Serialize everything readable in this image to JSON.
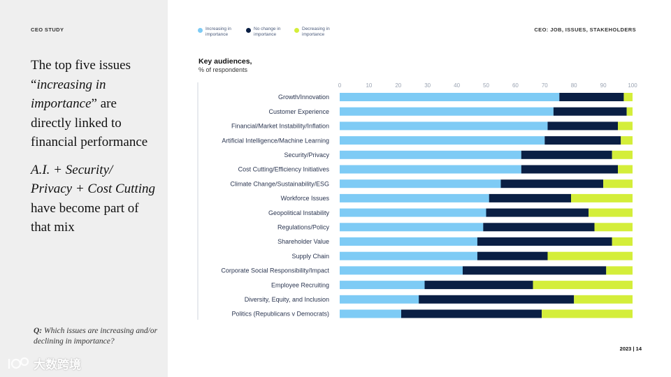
{
  "left_panel": {
    "section_label": "CEO STUDY",
    "headline_p1_a": "The top five  issues “",
    "headline_p1_b": "increasing in importance",
    "headline_p1_c": "” are directly linked to financial performance",
    "headline_p2_a": "A.I. + Security/ Privacy + Cost Cutting",
    "headline_p2_b": " have become part of that mix",
    "question_prefix": "Q:",
    "question_text": " Which issues are increasing and/or declining in importance?",
    "watermark_text": "大数跨境"
  },
  "header": {
    "right_label": "CEO: JOB, ISSUES, STAKEHOLDERS"
  },
  "legend": [
    {
      "label": "Increasing in importance",
      "color": "#7ecbf5"
    },
    {
      "label": "No change in importance",
      "color": "#0a1f44"
    },
    {
      "label": "Decreasing in importance",
      "color": "#d4ee3a"
    }
  ],
  "footer": {
    "year": "2023",
    "separator": "|",
    "page": "14"
  },
  "chart_data": {
    "type": "bar",
    "orientation": "horizontal",
    "stacked": true,
    "title": "Key audiences,",
    "subtitle": "% of respondents",
    "xlim": [
      0,
      100
    ],
    "xticks": [
      0,
      10,
      20,
      30,
      40,
      50,
      60,
      70,
      80,
      90,
      100
    ],
    "categories": [
      "Growth/Innovation",
      "Customer Experience",
      "Financial/Market Instability/Inflation",
      "Artificial Intelligence/Machine Learning",
      "Security/Privacy",
      "Cost Cutting/Efficiency Initiatives",
      "Climate Change/Sustainability/ESG",
      "Workforce Issues",
      "Geopolitical Instability",
      "Regulations/Policy",
      "Shareholder Value",
      "Supply Chain",
      "Corporate Social Responsibility/Impact",
      "Employee Recruiting",
      "Diversity, Equity, and Inclusion",
      "Politics (Republicans v Democrats)"
    ],
    "series": [
      {
        "name": "Increasing in importance",
        "color": "#7ecbf5",
        "values": [
          75,
          73,
          71,
          70,
          62,
          62,
          55,
          51,
          50,
          49,
          47,
          47,
          42,
          29,
          27,
          21
        ]
      },
      {
        "name": "No change in importance",
        "color": "#0a1f44",
        "values": [
          22,
          25,
          24,
          26,
          31,
          33,
          35,
          28,
          35,
          38,
          46,
          24,
          49,
          37,
          53,
          48
        ]
      },
      {
        "name": "Decreasing in importance",
        "color": "#d4ee3a",
        "values": [
          3,
          2,
          5,
          4,
          7,
          5,
          10,
          21,
          15,
          13,
          7,
          29,
          9,
          34,
          20,
          31
        ]
      }
    ]
  }
}
